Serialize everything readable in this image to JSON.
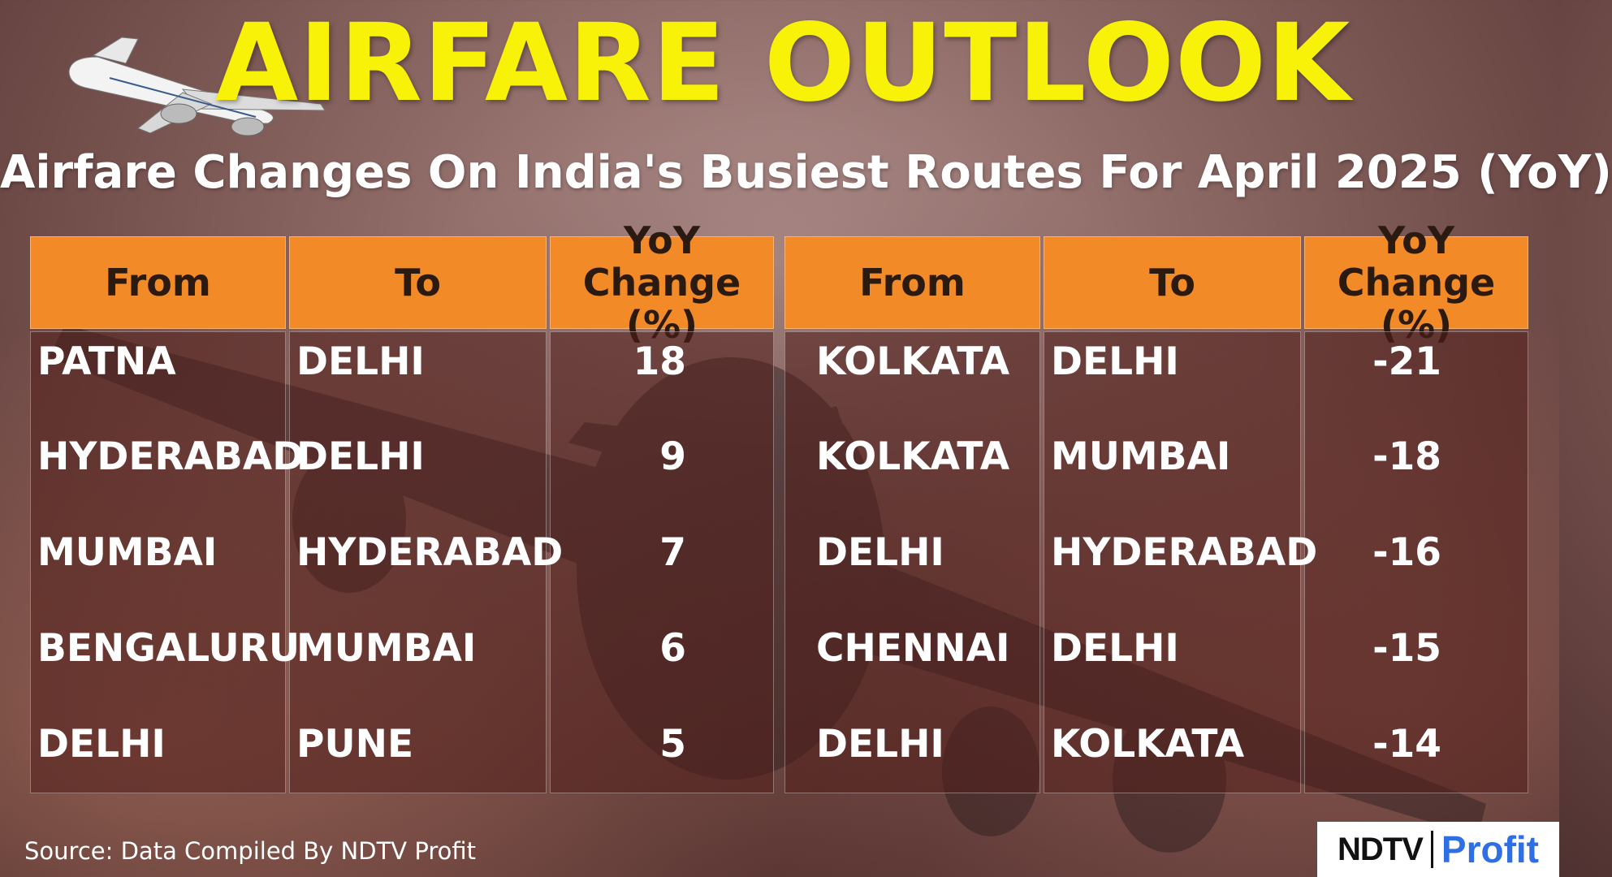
{
  "title": "AIRFARE OUTLOOK",
  "subtitle": "Airfare Changes On India's Busiest Routes For April 2025 (YoY)",
  "table": {
    "headers": {
      "from": "From",
      "to": "To",
      "yoy_line1": "YoY",
      "yoy_line2": "Change (%)"
    },
    "left_rows": [
      {
        "from": "PATNA",
        "to": "DELHI",
        "change": "18"
      },
      {
        "from": "HYDERABAD",
        "to": "DELHI",
        "change": "9"
      },
      {
        "from": "MUMBAI",
        "to": "HYDERABAD",
        "change": "7"
      },
      {
        "from": "BENGALURU",
        "to": "MUMBAI",
        "change": "6"
      },
      {
        "from": "DELHI",
        "to": "PUNE",
        "change": "5"
      }
    ],
    "right_rows": [
      {
        "from": "KOLKATA",
        "to": "DELHI",
        "change": "-21"
      },
      {
        "from": "KOLKATA",
        "to": "MUMBAI",
        "change": "-18"
      },
      {
        "from": "DELHI",
        "to": "HYDERABAD",
        "change": "-16"
      },
      {
        "from": "CHENNAI",
        "to": "DELHI",
        "change": "-15"
      },
      {
        "from": "DELHI",
        "to": "KOLKATA",
        "change": "-14"
      }
    ]
  },
  "source": "Source: Data Compiled By NDTV Profit",
  "logo": {
    "brand": "NDTV",
    "product": "Profit"
  },
  "colors": {
    "title": "#f7f207",
    "header_bg": "#f28a27",
    "profit_blue": "#2f6fe4"
  },
  "icons": [
    "airplane-icon",
    "background-airplane-image"
  ]
}
